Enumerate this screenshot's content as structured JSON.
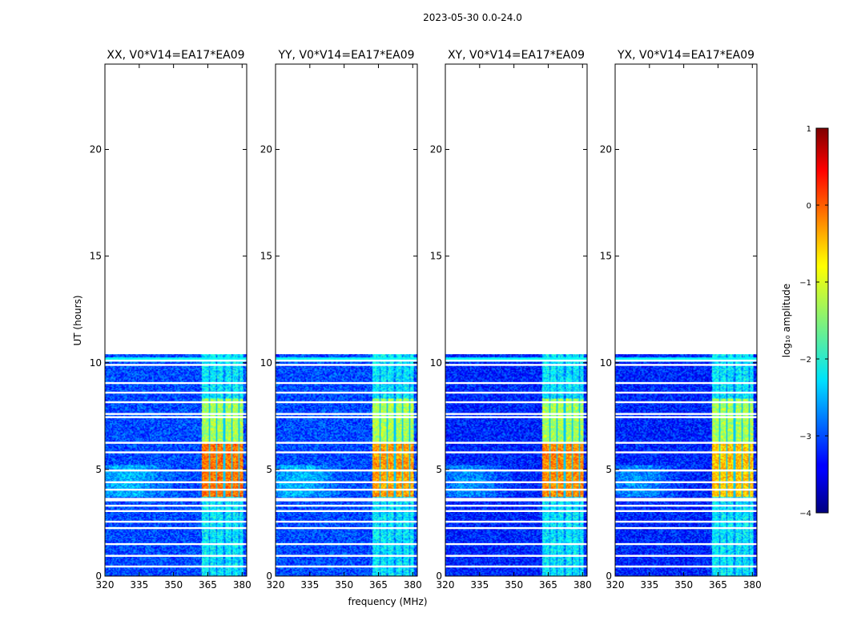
{
  "figure": {
    "suptitle": "2023-05-30 0.0-24.0"
  },
  "chart_data": {
    "type": "heatmap",
    "title": "2023-05-30 0.0-24.0",
    "xlabel": "frequency (MHz)",
    "ylabel": "UT (hours)",
    "xlim": [
      320,
      382
    ],
    "ylim": [
      0,
      24
    ],
    "xticks": [
      320,
      335,
      350,
      365,
      380
    ],
    "yticks": [
      0,
      5,
      10,
      15,
      20
    ],
    "data_extent_hours": [
      0,
      10.4
    ],
    "bright_band_MHz": [
      362.5,
      380.5
    ],
    "strong_interval_hours": [
      3.7,
      8.3
    ],
    "gap_rows_hours": [
      0.45,
      0.95,
      1.5,
      2.25,
      2.55,
      3.05,
      3.3,
      3.55,
      3.62,
      4.05,
      4.4,
      4.95,
      5.8,
      6.25,
      7.45,
      7.6,
      8.15,
      8.6,
      9.05,
      9.9,
      10.1
    ],
    "panels": [
      {
        "title": "XX, V0*V14=EA17*EA09",
        "polarization": "XX",
        "base_level": -3.0,
        "peak_level": 0.2
      },
      {
        "title": "YY, V0*V14=EA17*EA09",
        "polarization": "YY",
        "base_level": -3.0,
        "peak_level": 0.0
      },
      {
        "title": "XY, V0*V14=EA17*EA09",
        "polarization": "XY",
        "base_level": -3.2,
        "peak_level": 0.1
      },
      {
        "title": "YX, V0*V14=EA17*EA09",
        "polarization": "YX",
        "base_level": -3.2,
        "peak_level": -0.2
      }
    ],
    "colorbar": {
      "label": "log₁₀ amplitude",
      "min": -4,
      "max": 1,
      "ticks": [
        1,
        0,
        -1,
        -2,
        -3,
        -4
      ],
      "tick_labels": [
        "1",
        "0",
        "−1",
        "−2",
        "−3",
        "−4"
      ],
      "colormap": "jet"
    }
  }
}
